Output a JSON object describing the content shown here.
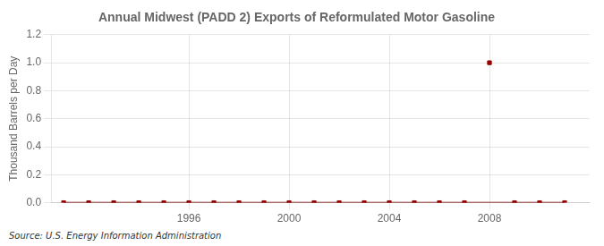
{
  "chart_data": {
    "type": "line",
    "title": "Annual Midwest (PADD 2) Exports of Reformulated Motor Gasoline",
    "y_label": "Thousand Barrels per Day",
    "annotation": "Source: U.S. Energy Information Administration",
    "x": [
      1991,
      1992,
      1993,
      1994,
      1995,
      1996,
      1997,
      1998,
      1999,
      2000,
      2001,
      2002,
      2003,
      2004,
      2005,
      2006,
      2007,
      2008,
      2009,
      2010,
      2011
    ],
    "series": [
      {
        "type": "line",
        "color": "#7a0000",
        "values": [
          0,
          0,
          0,
          0,
          0,
          0,
          0,
          0,
          0,
          0,
          0,
          0,
          0,
          0,
          0,
          0,
          0,
          0,
          0,
          0,
          0
        ]
      },
      {
        "type": "scatter",
        "marker": "square",
        "color": "#990000",
        "values": [
          0,
          0,
          0,
          0,
          0,
          0,
          0,
          0,
          0,
          0,
          0,
          0,
          0,
          0,
          0,
          0,
          0,
          1.0,
          0,
          0,
          0
        ]
      }
    ],
    "xlim": [
      1990.5,
      2012
    ],
    "xticks": [
      1996,
      2000,
      2004,
      2008
    ],
    "ylim": [
      0,
      1.2
    ],
    "yticks": [
      {
        "value": 0.0,
        "label": "0.0"
      },
      {
        "value": 0.2,
        "label": "0.2"
      },
      {
        "value": 0.4,
        "label": "0.4"
      },
      {
        "value": 0.6,
        "label": "0.6"
      },
      {
        "value": 0.8,
        "label": "0.8"
      },
      {
        "value": 1.0,
        "label": "1.0"
      },
      {
        "value": 1.2,
        "label": "1.2"
      }
    ],
    "grid": true
  }
}
